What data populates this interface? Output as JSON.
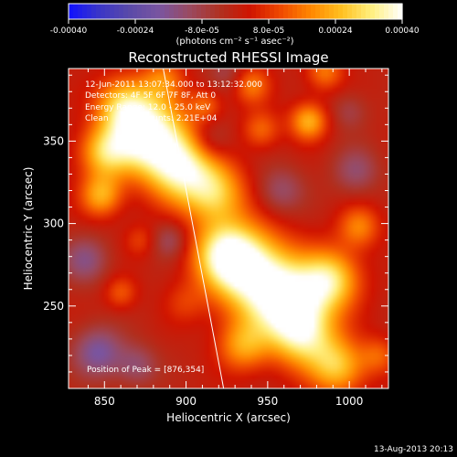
{
  "chart_data": {
    "type": "heatmap",
    "title": "Reconstructed RHESSI Image",
    "xlabel": "Heliocentric X (arcsec)",
    "ylabel": "Heliocentric Y (arcsec)",
    "xlim": [
      828,
      1024
    ],
    "ylim": [
      200,
      394
    ],
    "xticks": [
      850,
      900,
      950,
      1000
    ],
    "yticks": [
      250,
      300,
      350
    ],
    "colorbar": {
      "label": "(photons cm⁻² s⁻¹ asec⁻²)",
      "range": [
        -0.0004,
        0.0004
      ],
      "tick_values": [
        -0.0004,
        -0.00024,
        -8e-05,
        8e-05,
        0.00024,
        0.0004
      ],
      "tick_labels": [
        "-0.00040",
        "-0.00024",
        "-8.0e-05",
        "8.0e-05",
        "0.00024",
        "0.00040"
      ],
      "colormap": [
        "#1010ff",
        "#3a35c8",
        "#5a4aa8",
        "#7a55a0",
        "#9a4a60",
        "#b03020",
        "#d01400",
        "#ef4a00",
        "#ff8800",
        "#ffc020",
        "#fff080",
        "#ffffff"
      ]
    },
    "annotations": [
      "12-Jun-2011 13:07:34.000 to 13:12:32.000",
      "Detectors: 4F 5F 6F 7F 8F, Att 0",
      "Energy Range: 12.0 - 25.0 keV",
      "Clean     Total counts: 2.21E+04",
      "Position of Peak = [876,354]"
    ],
    "peak": [
      876,
      354
    ],
    "blobs": [
      {
        "x": 876,
        "y": 354,
        "v": 1.0,
        "s": 16
      },
      {
        "x": 862,
        "y": 372,
        "v": 0.6,
        "s": 12
      },
      {
        "x": 897,
        "y": 334,
        "v": 0.85,
        "s": 15
      },
      {
        "x": 918,
        "y": 318,
        "v": 0.62,
        "s": 13
      },
      {
        "x": 850,
        "y": 343,
        "v": 0.6,
        "s": 11
      },
      {
        "x": 848,
        "y": 317,
        "v": 0.55,
        "s": 9
      },
      {
        "x": 886,
        "y": 388,
        "v": 0.35,
        "s": 9
      },
      {
        "x": 941,
        "y": 270,
        "v": 0.85,
        "s": 18
      },
      {
        "x": 924,
        "y": 282,
        "v": 0.75,
        "s": 14
      },
      {
        "x": 962,
        "y": 252,
        "v": 0.8,
        "s": 16
      },
      {
        "x": 972,
        "y": 232,
        "v": 0.7,
        "s": 14
      },
      {
        "x": 988,
        "y": 266,
        "v": 0.75,
        "s": 13
      },
      {
        "x": 993,
        "y": 213,
        "v": 0.62,
        "s": 12
      },
      {
        "x": 935,
        "y": 226,
        "v": 0.5,
        "s": 11
      },
      {
        "x": 1006,
        "y": 298,
        "v": 0.42,
        "s": 9
      },
      {
        "x": 975,
        "y": 362,
        "v": 0.58,
        "s": 8
      },
      {
        "x": 985,
        "y": 392,
        "v": 0.4,
        "s": 8
      },
      {
        "x": 946,
        "y": 357,
        "v": 0.35,
        "s": 8
      },
      {
        "x": 940,
        "y": 384,
        "v": 0.4,
        "s": 8
      },
      {
        "x": 872,
        "y": 290,
        "v": 0.22,
        "s": 7
      },
      {
        "x": 899,
        "y": 252,
        "v": 0.18,
        "s": 9
      },
      {
        "x": 860,
        "y": 258,
        "v": 0.3,
        "s": 7
      },
      {
        "x": 912,
        "y": 372,
        "v": 0.32,
        "s": 7
      },
      {
        "x": 1018,
        "y": 220,
        "v": 0.3,
        "s": 8
      },
      {
        "x": 838,
        "y": 278,
        "v": -0.35,
        "s": 10
      },
      {
        "x": 846,
        "y": 222,
        "v": -0.45,
        "s": 11
      },
      {
        "x": 870,
        "y": 214,
        "v": -0.3,
        "s": 9
      },
      {
        "x": 890,
        "y": 290,
        "v": -0.28,
        "s": 8
      },
      {
        "x": 915,
        "y": 350,
        "v": -0.28,
        "s": 9
      },
      {
        "x": 958,
        "y": 320,
        "v": -0.3,
        "s": 10
      },
      {
        "x": 1004,
        "y": 332,
        "v": -0.3,
        "s": 10
      },
      {
        "x": 1000,
        "y": 368,
        "v": -0.2,
        "s": 8
      },
      {
        "x": 925,
        "y": 392,
        "v": -0.2,
        "s": 8
      }
    ],
    "limb_line": [
      [
        886,
        394
      ],
      [
        923,
        200
      ]
    ],
    "grid": false
  },
  "footer_date": "13-Aug-2013 20:13"
}
